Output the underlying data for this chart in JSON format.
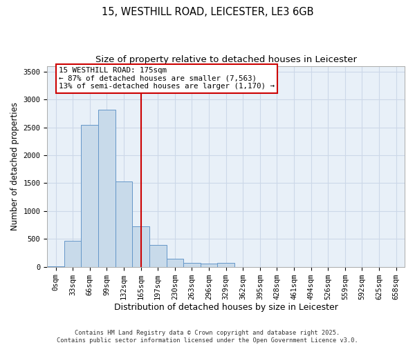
{
  "title_line1": "15, WESTHILL ROAD, LEICESTER, LE3 6GB",
  "title_line2": "Size of property relative to detached houses in Leicester",
  "xlabel": "Distribution of detached houses by size in Leicester",
  "ylabel": "Number of detached properties",
  "bin_labels": [
    "0sqm",
    "33sqm",
    "66sqm",
    "99sqm",
    "132sqm",
    "165sqm",
    "197sqm",
    "230sqm",
    "263sqm",
    "296sqm",
    "329sqm",
    "362sqm",
    "395sqm",
    "428sqm",
    "461sqm",
    "494sqm",
    "526sqm",
    "559sqm",
    "592sqm",
    "625sqm",
    "658sqm"
  ],
  "bar_heights": [
    10,
    470,
    2540,
    2820,
    1530,
    730,
    390,
    140,
    75,
    55,
    75,
    0,
    0,
    0,
    0,
    0,
    0,
    0,
    0,
    0,
    0
  ],
  "bar_color": "#c8daea",
  "bar_edge_color": "#6496c8",
  "vline_color": "#cc0000",
  "vline_x": 5.5,
  "annotation_text_line1": "15 WESTHILL ROAD: 175sqm",
  "annotation_text_line2": "← 87% of detached houses are smaller (7,563)",
  "annotation_text_line3": "13% of semi-detached houses are larger (1,170) →",
  "ylim": [
    0,
    3600
  ],
  "yticks": [
    0,
    500,
    1000,
    1500,
    2000,
    2500,
    3000,
    3500
  ],
  "grid_color": "#ccd8e8",
  "background_color": "#e8f0f8",
  "footer_line1": "Contains HM Land Registry data © Crown copyright and database right 2025.",
  "footer_line2": "Contains public sector information licensed under the Open Government Licence v3.0.",
  "title_fontsize": 10.5,
  "subtitle_fontsize": 9.5,
  "tick_fontsize": 7.5,
  "axis_label_fontsize": 9,
  "ylabel_fontsize": 8.5,
  "annotation_fontsize": 7.8,
  "footer_fontsize": 6.2
}
